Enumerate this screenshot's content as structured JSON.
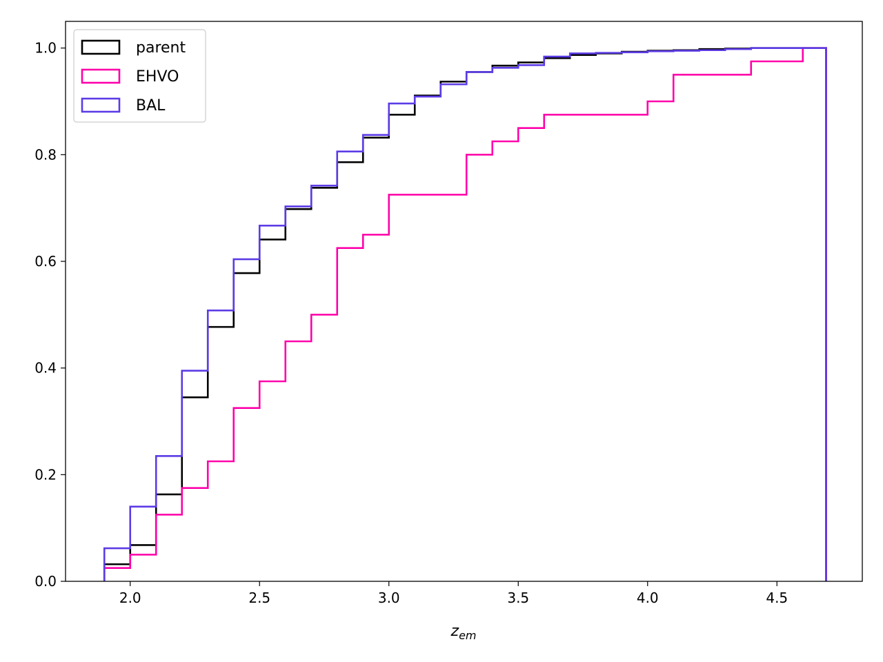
{
  "chart_data": {
    "type": "line",
    "title": "",
    "xlabel": "z",
    "xlabel_sub": "em",
    "ylabel": "",
    "xlim": [
      1.75,
      4.83
    ],
    "ylim": [
      0.0,
      1.05
    ],
    "xticks": [
      2.0,
      2.5,
      3.0,
      3.5,
      4.0,
      4.5
    ],
    "xtick_labels": [
      "2.0",
      "2.5",
      "3.0",
      "3.5",
      "4.0",
      "4.5"
    ],
    "yticks": [
      0.0,
      0.2,
      0.4,
      0.6,
      0.8,
      1.0
    ],
    "ytick_labels": [
      "0.0",
      "0.2",
      "0.4",
      "0.6",
      "0.8",
      "1.0"
    ],
    "grid": false,
    "legend_position": "top-left",
    "bin_edges": [
      1.9,
      2.0,
      2.1,
      2.2,
      2.3,
      2.4,
      2.5,
      2.6,
      2.7,
      2.8,
      2.9,
      3.0,
      3.1,
      3.2,
      3.3,
      3.4,
      3.5,
      3.6,
      3.7,
      3.8,
      3.9,
      4.0,
      4.1,
      4.2,
      4.3,
      4.4,
      4.5,
      4.6,
      4.69
    ],
    "series": [
      {
        "name": "parent",
        "color": "#000000",
        "values": [
          0.032,
          0.068,
          0.163,
          0.345,
          0.477,
          0.578,
          0.641,
          0.698,
          0.738,
          0.786,
          0.832,
          0.875,
          0.911,
          0.937,
          0.955,
          0.967,
          0.973,
          0.981,
          0.987,
          0.99,
          0.993,
          0.995,
          0.996,
          0.998,
          0.999,
          1.0,
          1.0,
          1.0
        ]
      },
      {
        "name": "EHVO",
        "color": "#ff00aa",
        "values": [
          0.025,
          0.05,
          0.125,
          0.175,
          0.225,
          0.325,
          0.375,
          0.45,
          0.5,
          0.625,
          0.65,
          0.725,
          0.725,
          0.725,
          0.8,
          0.825,
          0.85,
          0.875,
          0.875,
          0.875,
          0.875,
          0.9,
          0.95,
          0.95,
          0.95,
          0.975,
          0.975,
          1.0
        ]
      },
      {
        "name": "BAL",
        "color": "#5c3be6",
        "values": [
          0.062,
          0.14,
          0.235,
          0.395,
          0.508,
          0.604,
          0.667,
          0.703,
          0.742,
          0.806,
          0.837,
          0.896,
          0.909,
          0.932,
          0.955,
          0.963,
          0.968,
          0.984,
          0.99,
          0.991,
          0.992,
          0.994,
          0.995,
          0.996,
          0.998,
          1.0,
          1.0,
          1.0
        ]
      }
    ]
  }
}
